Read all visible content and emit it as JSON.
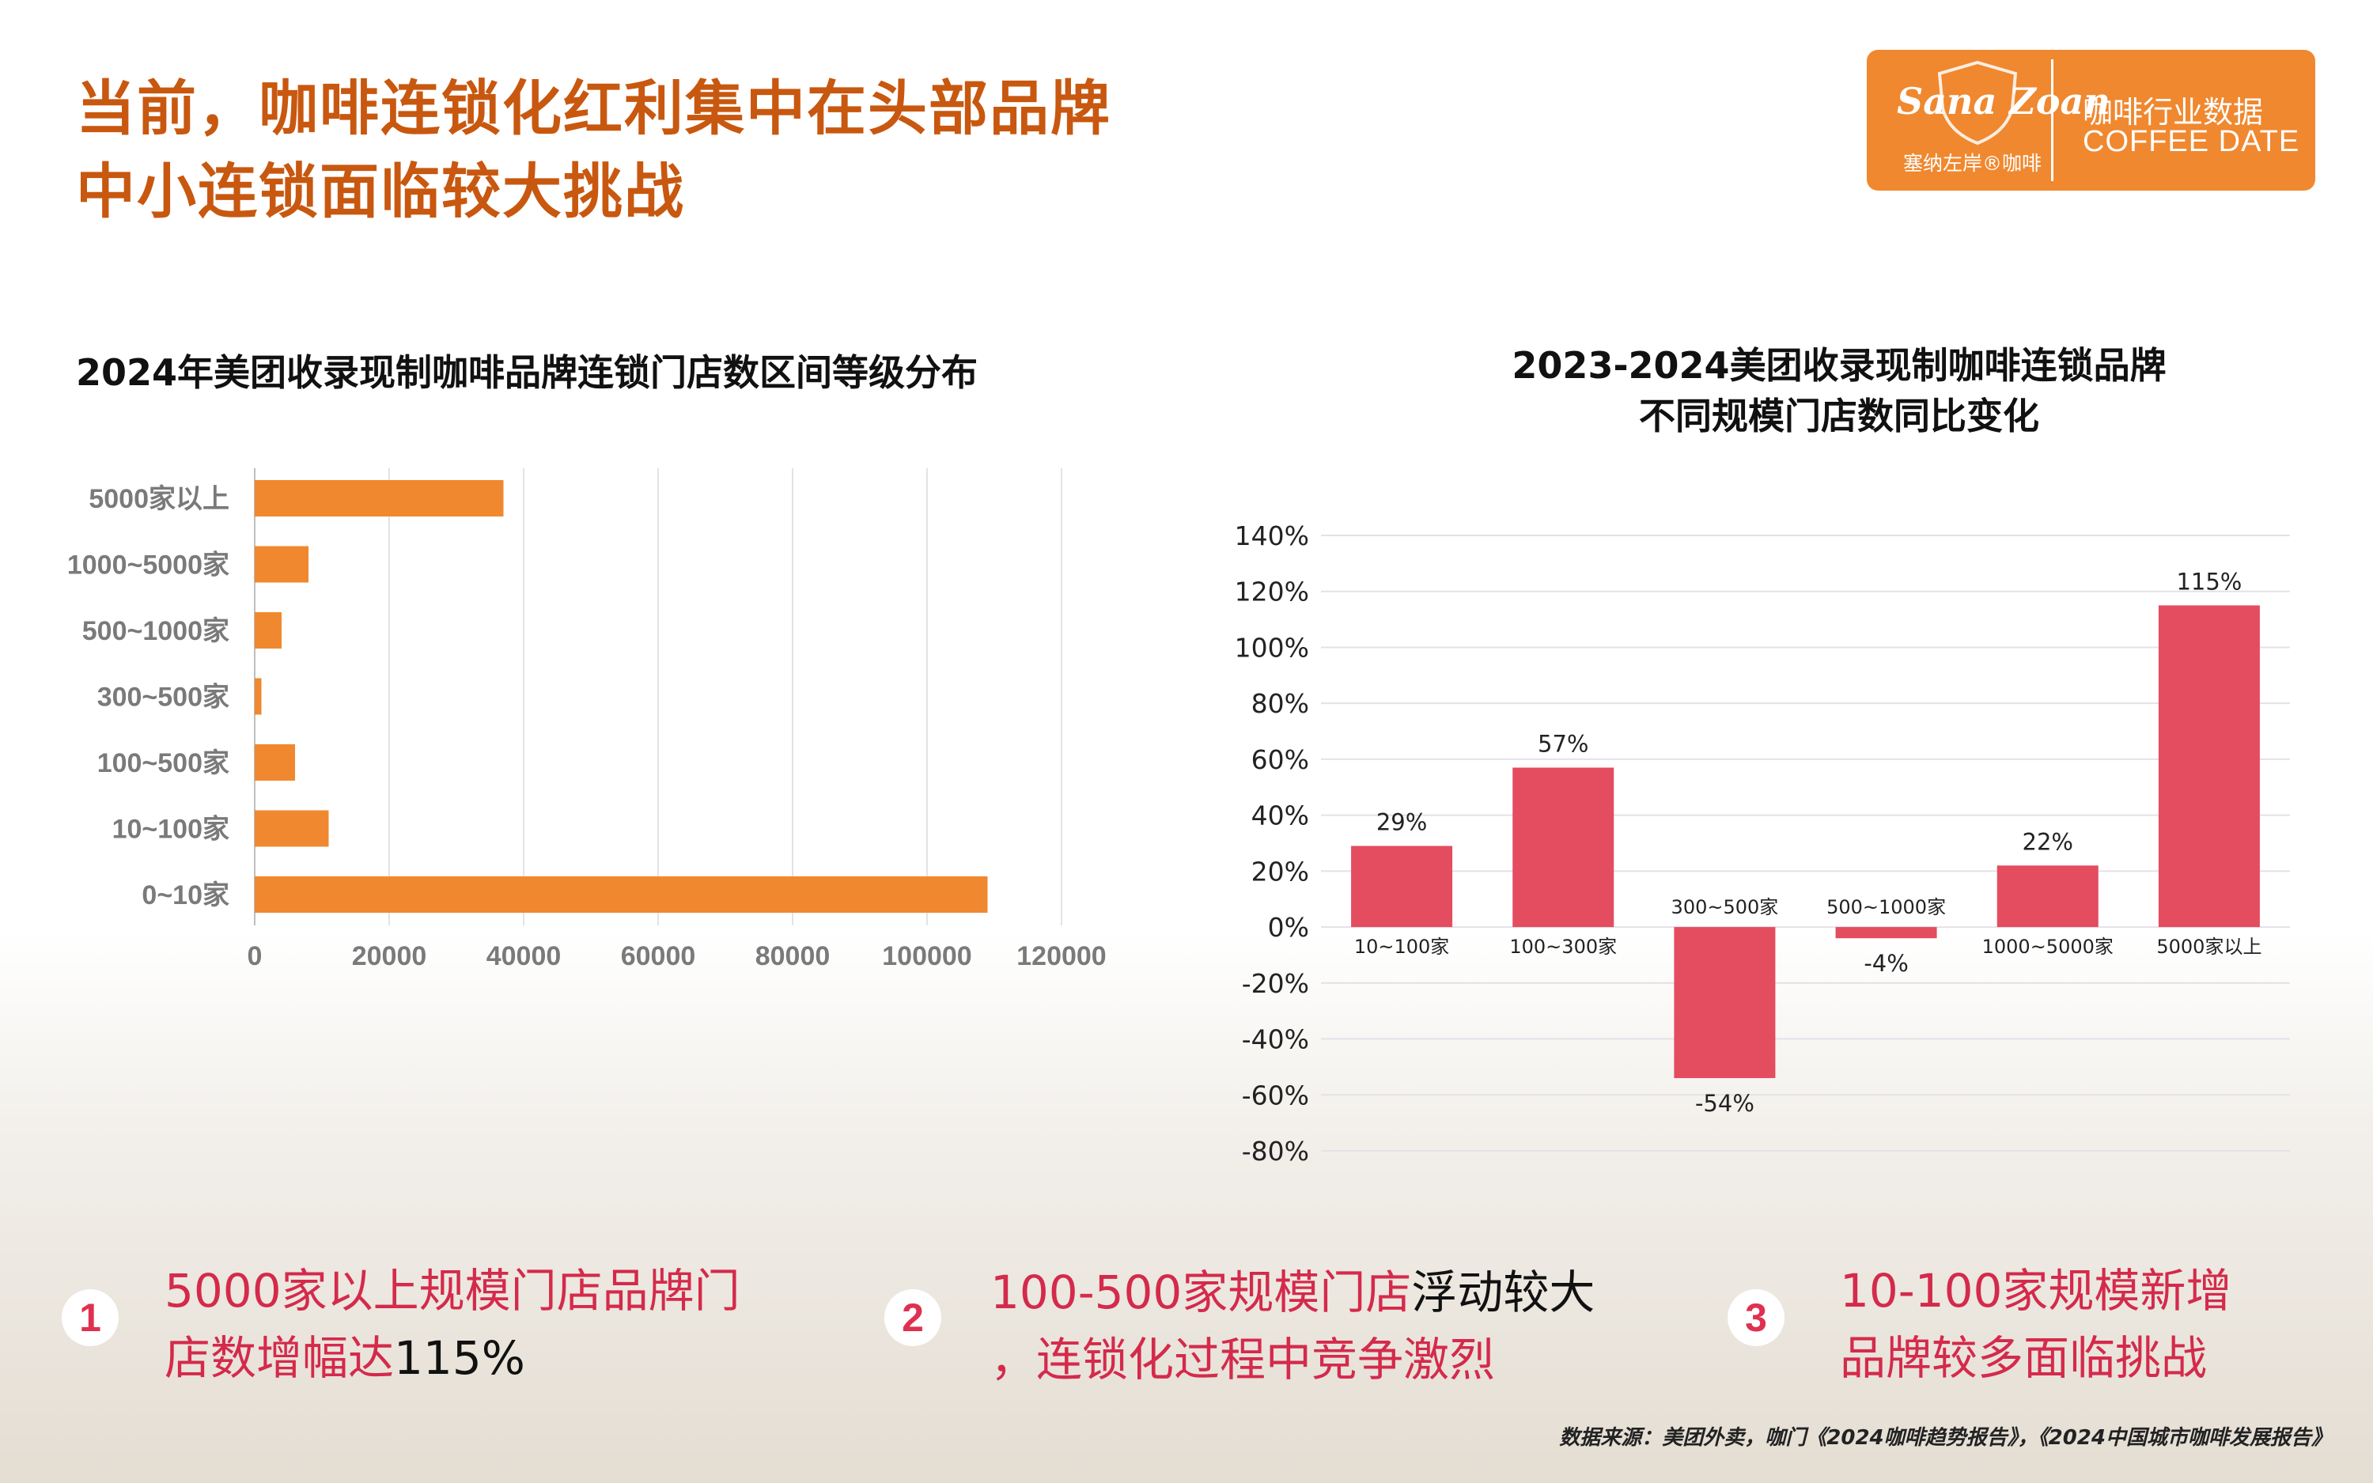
{
  "headline": {
    "line1_a": "当前，咖啡连锁化红利",
    "line1_b": "集中在头部品牌",
    "line2": "中小连锁面临较大挑战"
  },
  "logo": {
    "wordmark": "Sana Zoan",
    "cn_name": "塞纳左岸®咖啡",
    "tag_cn": "咖啡行业数据",
    "tag_en": "COFFEE DATE"
  },
  "colors": {
    "orange": "#f0882f",
    "red": "#e44c5f",
    "title_orange": "#c8580f"
  },
  "chart_data": [
    {
      "type": "bar",
      "orientation": "horizontal",
      "title": "2024年美团收录现制咖啡品牌连锁门店数区间等级分布",
      "categories": [
        "5000家以上",
        "1000~5000家",
        "500~1000家",
        "300~500家",
        "100~500家",
        "10~100家",
        "0~10家"
      ],
      "values": [
        37000,
        8000,
        4000,
        1000,
        6000,
        11000,
        109000
      ],
      "xlim": [
        0,
        120000
      ],
      "xticks": [
        "0",
        "20000",
        "40000",
        "60000",
        "80000",
        "100000",
        "120000"
      ],
      "grid": "vertical",
      "color": "#f0882f"
    },
    {
      "type": "bar",
      "title_line1": "2023-2024美团收录现制咖啡连锁品牌",
      "title_line2": "不同规模门店数同比变化",
      "categories": [
        "10~100家",
        "100~300家",
        "300~500家",
        "500~1000家",
        "1000~5000家",
        "5000家以上"
      ],
      "values": [
        29,
        57,
        -54,
        -4,
        22,
        115
      ],
      "value_labels": [
        "29%",
        "57%",
        "-54%",
        "-4%",
        "22%",
        "115%"
      ],
      "ylim": [
        -80,
        140
      ],
      "yticks": [
        "140%",
        "120%",
        "100%",
        "80%",
        "60%",
        "40%",
        "20%",
        "0%",
        "-20%",
        "-40%",
        "-60%",
        "-80%"
      ],
      "grid": "horizontal",
      "color": "#e44c5f"
    }
  ],
  "insights": [
    {
      "num": "1",
      "line1": "5000家以上规模门店品牌门",
      "line2_red": "店数增幅达",
      "line2_black": "115%"
    },
    {
      "num": "2",
      "line1_red": "100-500家规模门店",
      "line1_black": "浮动较大",
      "line2_red": "，连锁化过程中竞争激烈"
    },
    {
      "num": "3",
      "line1": "10-100家规模新增",
      "line2": "品牌较多面临挑战"
    }
  ],
  "source": "数据来源：美团外卖，咖门《2024咖啡趋势报告》，《2024中国城市咖啡发展报告》"
}
